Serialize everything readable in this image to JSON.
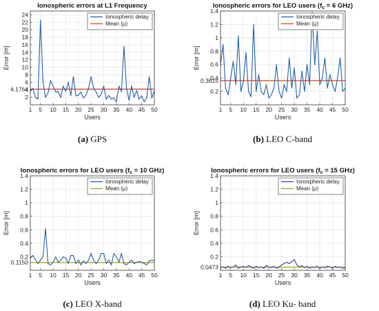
{
  "chart_data": [
    {
      "type": "line",
      "title": "Ionospheric errors at L1 Frequency",
      "xlabel": "Users",
      "ylabel": "Error [m]",
      "xlim": [
        1,
        50
      ],
      "ylim": [
        0,
        25
      ],
      "xticks": [
        "1",
        "5",
        "10",
        "15",
        "20",
        "25",
        "30",
        "35",
        "40",
        "45",
        "50"
      ],
      "yticks": [
        "2",
        "4",
        "6",
        "8",
        "10",
        "12",
        "14",
        "16",
        "18",
        "20",
        "22",
        "24"
      ],
      "special_ytick": "4.1764",
      "grid": true,
      "legend_position": "top-right",
      "caption_label": "(a)",
      "caption_text": "GPS",
      "series": [
        {
          "name": "Ionospheric delay",
          "color": "#1f5fa8",
          "x": [
            1,
            2,
            3,
            4,
            5,
            6,
            7,
            8,
            9,
            10,
            11,
            12,
            13,
            14,
            15,
            16,
            17,
            18,
            19,
            20,
            21,
            22,
            23,
            24,
            25,
            26,
            27,
            28,
            29,
            30,
            31,
            32,
            33,
            34,
            35,
            36,
            37,
            38,
            39,
            40,
            41,
            42,
            43,
            44,
            45,
            46,
            47,
            48,
            49,
            50
          ],
          "values": [
            3.5,
            4.4,
            2.0,
            1.5,
            22.6,
            6.2,
            2.0,
            3.2,
            6.5,
            5.0,
            3.4,
            3.6,
            2.0,
            5.0,
            3.6,
            6.0,
            2.5,
            7.5,
            2.4,
            2.6,
            3.4,
            1.8,
            2.6,
            4.4,
            7.5,
            4.5,
            3.4,
            2.0,
            2.8,
            5.0,
            1.5,
            2.5,
            1.5,
            1.8,
            0.8,
            5.0,
            3.5,
            15.6,
            4.5,
            1.2,
            5.0,
            2.0,
            3.8,
            1.5,
            2.4,
            0.8,
            2.0,
            7.5,
            1.8,
            3.8
          ]
        },
        {
          "name": "Mean (μ)",
          "color": "#e0401a",
          "values": [
            4.1764
          ]
        }
      ]
    },
    {
      "type": "line",
      "title": "Ionospheric errors for LEO users (f",
      "title_sub": "c",
      "title_end": " = 6 GHz)",
      "xlabel": "Users",
      "ylabel": "Error [m]",
      "xlim": [
        1,
        50
      ],
      "ylim": [
        0,
        1.4
      ],
      "xticks": [
        "1",
        "5",
        "10",
        "15",
        "20",
        "25",
        "30",
        "35",
        "40",
        "45",
        "50"
      ],
      "yticks": [
        "0.2",
        "0.4",
        "0.6",
        "0.8",
        "1",
        "1.2",
        "1.4"
      ],
      "special_ytick": "0.3615",
      "grid": true,
      "legend_position": "top-right",
      "caption_label": "(b)",
      "caption_text": "LEO C-band",
      "series": [
        {
          "name": "Ionospheric delay",
          "color": "#1f5fa8",
          "x": [
            1,
            2,
            3,
            4,
            5,
            6,
            7,
            8,
            9,
            10,
            11,
            12,
            13,
            14,
            15,
            16,
            17,
            18,
            19,
            20,
            21,
            22,
            23,
            24,
            25,
            26,
            27,
            28,
            29,
            30,
            31,
            32,
            33,
            34,
            35,
            36,
            37,
            38,
            39,
            40,
            41,
            42,
            43,
            44,
            45,
            46,
            47,
            48,
            49,
            50
          ],
          "values": [
            0.6,
            0.9,
            0.25,
            0.15,
            0.4,
            0.65,
            0.3,
            1.03,
            0.2,
            0.35,
            0.78,
            0.2,
            0.12,
            1.2,
            0.2,
            0.45,
            0.2,
            0.15,
            0.3,
            0.1,
            0.15,
            0.25,
            0.6,
            0.2,
            0.1,
            0.3,
            0.2,
            0.7,
            0.25,
            0.55,
            0.1,
            0.15,
            0.5,
            0.2,
            0.6,
            0.3,
            1.38,
            0.6,
            1.1,
            0.3,
            0.4,
            0.7,
            0.25,
            0.45,
            0.3,
            0.2,
            0.4,
            0.7,
            0.2,
            0.25
          ]
        },
        {
          "name": "Mean (μ)",
          "color": "#e0401a",
          "values": [
            0.3615
          ]
        }
      ]
    },
    {
      "type": "line",
      "title": "Ionospheric errors for LEO users (f",
      "title_sub": "c",
      "title_end": " = 10 GHz)",
      "xlabel": "Users",
      "ylabel": "Error [m]",
      "xlim": [
        1,
        50
      ],
      "ylim": [
        0,
        1.4
      ],
      "xticks": [
        "1",
        "5",
        "10",
        "15",
        "20",
        "25",
        "30",
        "35",
        "40",
        "45",
        "50"
      ],
      "yticks": [
        "0.2",
        "0.4",
        "0.6",
        "0.8",
        "1",
        "1.2",
        "1.4"
      ],
      "special_ytick": "0.1150",
      "grid": true,
      "legend_position": "top-right",
      "caption_label": "(c)",
      "caption_text": "LEO X-band",
      "series": [
        {
          "name": "Ionospheric delay",
          "color": "#1f5fa8",
          "x": [
            1,
            2,
            3,
            4,
            5,
            6,
            7,
            8,
            9,
            10,
            11,
            12,
            13,
            14,
            15,
            16,
            17,
            18,
            19,
            20,
            21,
            22,
            23,
            24,
            25,
            26,
            27,
            28,
            29,
            30,
            31,
            32,
            33,
            34,
            35,
            36,
            37,
            38,
            39,
            40,
            41,
            42,
            43,
            44,
            45,
            46,
            47,
            48,
            49,
            50
          ],
          "values": [
            0.18,
            0.22,
            0.16,
            0.1,
            0.15,
            0.2,
            0.62,
            0.1,
            0.08,
            0.12,
            0.2,
            0.12,
            0.15,
            0.2,
            0.18,
            0.1,
            0.22,
            0.22,
            0.1,
            0.15,
            0.08,
            0.14,
            0.1,
            0.15,
            0.25,
            0.15,
            0.1,
            0.15,
            0.25,
            0.25,
            0.1,
            0.15,
            0.08,
            0.25,
            0.2,
            0.12,
            0.25,
            0.1,
            0.08,
            0.12,
            0.15,
            0.1,
            0.12,
            0.13,
            0.12,
            0.1,
            0.08,
            0.14,
            0.15,
            0.14
          ]
        },
        {
          "name": "Mean (μ)",
          "color": "#a8a600",
          "values": [
            0.115
          ]
        }
      ]
    },
    {
      "type": "line",
      "title": "Ionospheric errors for LEO users (f",
      "title_sub": "c",
      "title_end": " = 15 GHz)",
      "xlabel": "Users",
      "ylabel": "Error [m]",
      "xlim": [
        1,
        50
      ],
      "ylim": [
        0,
        1.4
      ],
      "xticks": [
        "1",
        "5",
        "10",
        "15",
        "20",
        "25",
        "30",
        "35",
        "40",
        "45",
        "50"
      ],
      "yticks": [
        "0.2",
        "0.4",
        "0.6",
        "0.8",
        "1",
        "1.2",
        "1.4"
      ],
      "special_ytick": "0.0473",
      "grid": true,
      "legend_position": "top-right",
      "caption_label": "(d)",
      "caption_text": "LEO Ku- band",
      "series": [
        {
          "name": "Ionospheric delay",
          "color": "#3a3fb0",
          "x": [
            1,
            2,
            3,
            4,
            5,
            6,
            7,
            8,
            9,
            10,
            11,
            12,
            13,
            14,
            15,
            16,
            17,
            18,
            19,
            20,
            21,
            22,
            23,
            24,
            25,
            26,
            27,
            28,
            29,
            30,
            31,
            32,
            33,
            34,
            35,
            36,
            37,
            38,
            39,
            40,
            41,
            42,
            43,
            44,
            45,
            46,
            47,
            48,
            49,
            50
          ],
          "values": [
            0.04,
            0.05,
            0.03,
            0.06,
            0.04,
            0.05,
            0.08,
            0.03,
            0.05,
            0.06,
            0.04,
            0.07,
            0.05,
            0.03,
            0.06,
            0.04,
            0.05,
            0.03,
            0.07,
            0.05,
            0.04,
            0.06,
            0.03,
            0.05,
            0.08,
            0.1,
            0.12,
            0.1,
            0.13,
            0.16,
            0.08,
            0.05,
            0.07,
            0.04,
            0.06,
            0.03,
            0.05,
            0.04,
            0.06,
            0.03,
            0.05,
            0.04,
            0.06,
            0.05,
            0.03,
            0.06,
            0.04,
            0.05,
            0.03,
            0.04
          ]
        },
        {
          "name": "Mean (μ)",
          "color": "#a8a600",
          "values": [
            0.0473
          ]
        }
      ]
    }
  ]
}
